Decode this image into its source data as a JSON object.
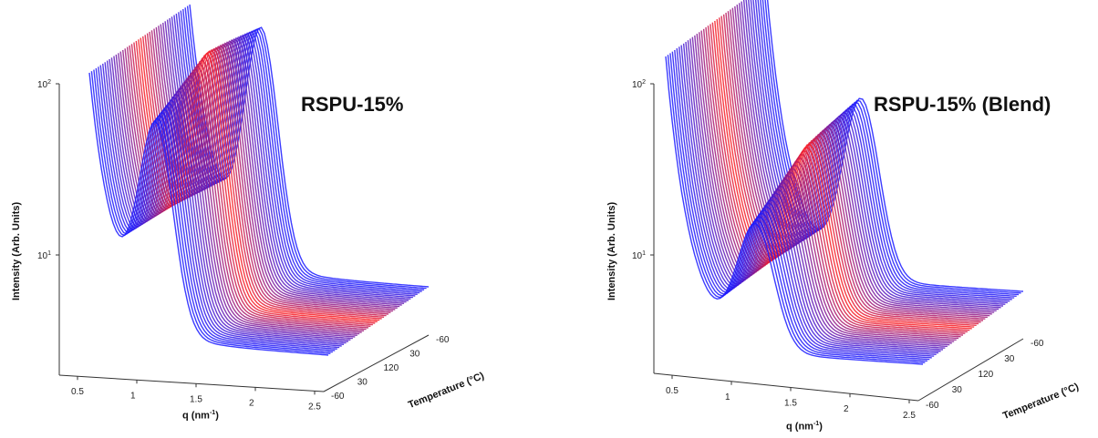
{
  "chart_data": [
    {
      "type": "surface",
      "title": "RSPU-15%",
      "xlabel": "q (nm",
      "xlabel_sup": "-1",
      "xlabel_end": ")",
      "ylabel": "Intensity (Arb. Units)",
      "zlabel": "Temperature  (°C)",
      "y_scale": "log",
      "y_ticks": [
        "10",
        "10"
      ],
      "y_tick_sups": [
        "2",
        "1"
      ],
      "x_ticks": [
        "0.5",
        "1",
        "1.5",
        "2",
        "2.5"
      ],
      "z_ticks": [
        "-60",
        "30",
        "120",
        "30",
        "-60"
      ],
      "series_colors": [
        "#1a1aff",
        "#ff1a1a"
      ]
    },
    {
      "type": "surface",
      "title": "RSPU-15% (Blend)",
      "xlabel": "q (nm",
      "xlabel_sup": "-1",
      "xlabel_end": ")",
      "ylabel": "Intensity (Arb. Units)",
      "zlabel": "Temperature  (°C)",
      "y_scale": "log",
      "y_ticks": [
        "10",
        "10"
      ],
      "y_tick_sups": [
        "2",
        "1"
      ],
      "x_ticks": [
        "0.5",
        "1",
        "1.5",
        "2",
        "2.5"
      ],
      "z_ticks": [
        "-60",
        "30",
        "120",
        "30",
        "-60"
      ],
      "series_colors": [
        "#1a1aff",
        "#ff1a1a"
      ]
    }
  ]
}
